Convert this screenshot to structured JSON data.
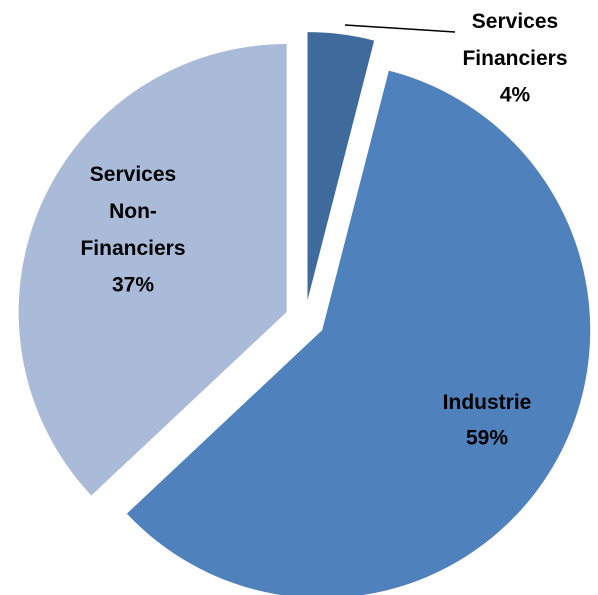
{
  "chart_data": {
    "type": "pie",
    "categories": [
      "Services Financiers",
      "Industrie",
      "Services Non-Financiers"
    ],
    "values": [
      4,
      59,
      37
    ],
    "value_labels": [
      "4%",
      "59%",
      "37%"
    ],
    "colors": [
      "#3f6a9c",
      "#4f81bd",
      "#a9bbd9"
    ]
  }
}
